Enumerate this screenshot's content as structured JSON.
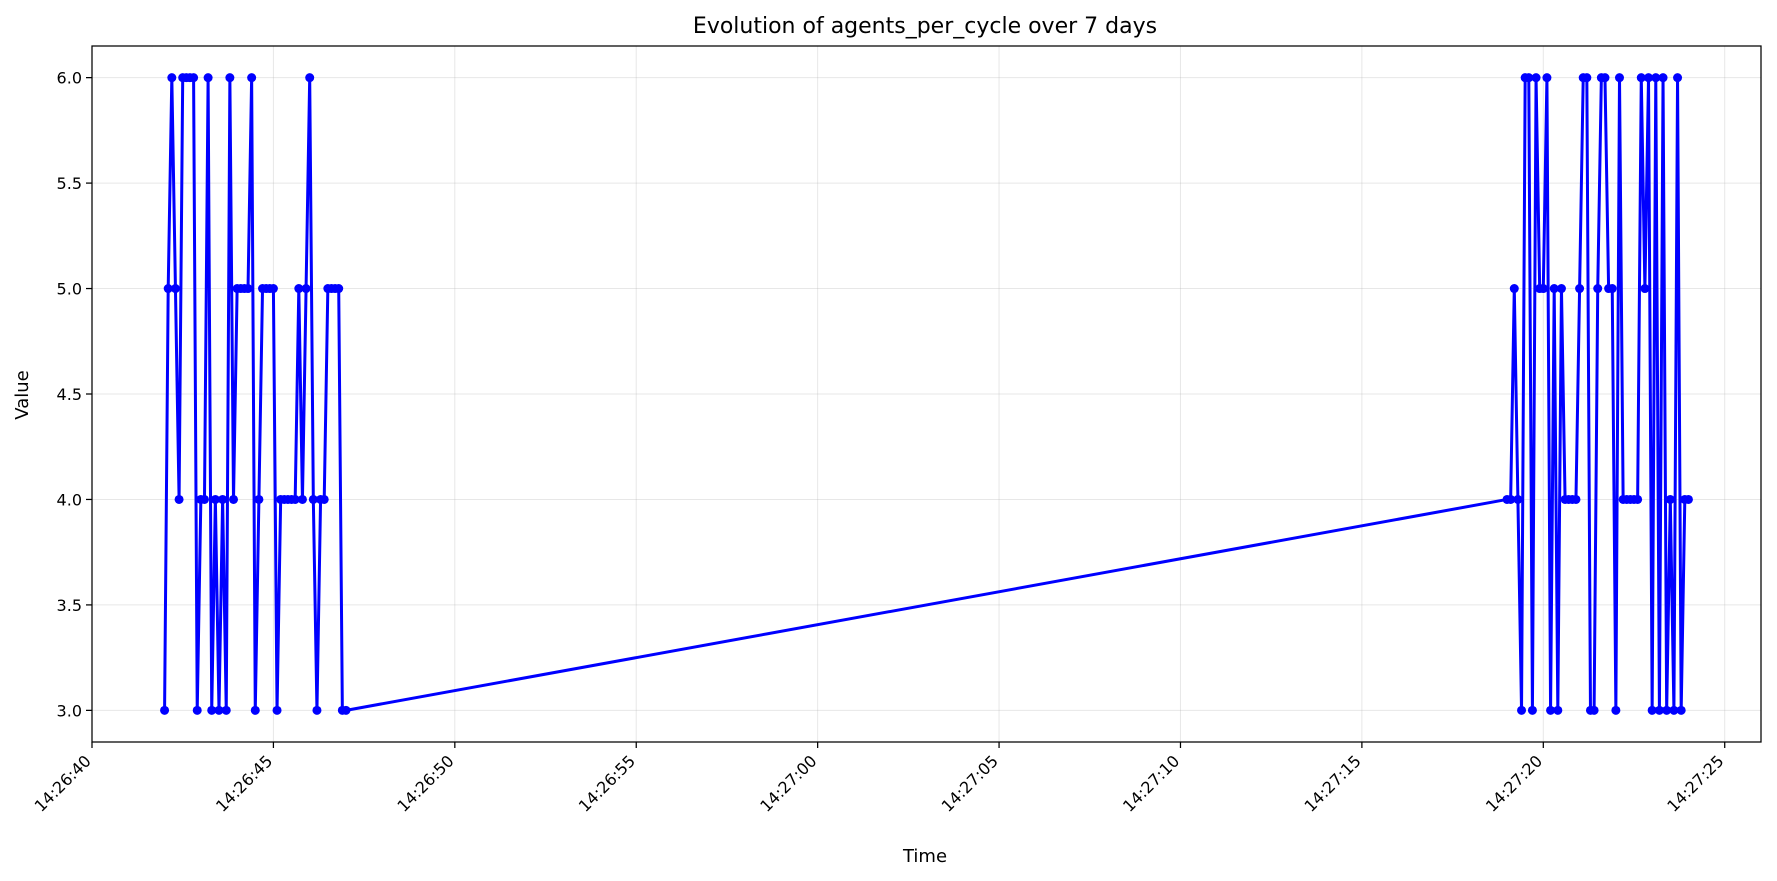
{
  "chart_data": {
    "type": "line",
    "title": "Evolution of agents_per_cycle over 7 days",
    "xlabel": "Time",
    "ylabel": "Value",
    "xlim": [
      "14:26:40",
      "14:27:26"
    ],
    "ylim": [
      2.85,
      6.15
    ],
    "x_ticks": [
      "14:26:40",
      "14:26:45",
      "14:26:50",
      "14:26:55",
      "14:27:00",
      "14:27:05",
      "14:27:10",
      "14:27:15",
      "14:27:20",
      "14:27:25"
    ],
    "y_ticks": [
      "3.0",
      "3.5",
      "4.0",
      "4.5",
      "5.0",
      "5.5",
      "6.0"
    ],
    "grid": true,
    "line_color": "#0000ff",
    "marker": "circle",
    "series": [
      {
        "x": [
          "14:26:42.0",
          "14:26:42.1",
          "14:26:42.2",
          "14:26:42.3",
          "14:26:42.4",
          "14:26:42.5",
          "14:26:42.6",
          "14:26:42.7",
          "14:26:42.8",
          "14:26:42.9",
          "14:26:43.0",
          "14:26:43.1",
          "14:26:43.2",
          "14:26:43.3",
          "14:26:43.4",
          "14:26:43.5",
          "14:26:43.6",
          "14:26:43.7",
          "14:26:43.8",
          "14:26:43.9",
          "14:26:44.0",
          "14:26:44.1",
          "14:26:44.2",
          "14:26:44.3",
          "14:26:44.4",
          "14:26:44.5",
          "14:26:44.6",
          "14:26:44.7",
          "14:26:44.8",
          "14:26:44.9",
          "14:26:45.0",
          "14:26:45.1",
          "14:26:45.2",
          "14:26:45.3",
          "14:26:45.4",
          "14:26:45.5",
          "14:26:45.6",
          "14:26:45.7",
          "14:26:45.8",
          "14:26:45.9",
          "14:26:46.0",
          "14:26:46.1",
          "14:26:46.2",
          "14:26:46.3",
          "14:26:46.4",
          "14:26:46.5",
          "14:26:46.6",
          "14:26:46.7",
          "14:26:46.8",
          "14:26:46.9",
          "14:26:47.0",
          "14:27:19.0",
          "14:27:19.1",
          "14:27:19.2",
          "14:27:19.3",
          "14:27:19.4",
          "14:27:19.5",
          "14:27:19.6",
          "14:27:19.7",
          "14:27:19.8",
          "14:27:19.9",
          "14:27:20.0",
          "14:27:20.1",
          "14:27:20.2",
          "14:27:20.3",
          "14:27:20.4",
          "14:27:20.5",
          "14:27:20.6",
          "14:27:20.7",
          "14:27:20.8",
          "14:27:20.9",
          "14:27:21.0",
          "14:27:21.1",
          "14:27:21.2",
          "14:27:21.3",
          "14:27:21.4",
          "14:27:21.5",
          "14:27:21.6",
          "14:27:21.7",
          "14:27:21.8",
          "14:27:21.9",
          "14:27:22.0",
          "14:27:22.1",
          "14:27:22.2",
          "14:27:22.3",
          "14:27:22.4",
          "14:27:22.5",
          "14:27:22.6",
          "14:27:22.7",
          "14:27:22.8",
          "14:27:22.9",
          "14:27:23.0",
          "14:27:23.1",
          "14:27:23.2",
          "14:27:23.3",
          "14:27:23.4",
          "14:27:23.5",
          "14:27:23.6",
          "14:27:23.7",
          "14:27:23.8",
          "14:27:23.9",
          "14:27:24.0"
        ],
        "y": [
          3,
          5,
          6,
          5,
          4,
          6,
          6,
          6,
          6,
          3,
          4,
          4,
          6,
          3,
          4,
          3,
          4,
          3,
          6,
          4,
          5,
          5,
          5,
          5,
          6,
          3,
          4,
          5,
          5,
          5,
          5,
          3,
          4,
          4,
          4,
          4,
          4,
          5,
          4,
          5,
          6,
          4,
          3,
          4,
          4,
          5,
          5,
          5,
          5,
          3,
          3,
          4,
          4,
          5,
          4,
          3,
          6,
          6,
          3,
          6,
          5,
          5,
          6,
          3,
          5,
          3,
          5,
          4,
          4,
          4,
          4,
          5,
          6,
          6,
          3,
          3,
          5,
          6,
          6,
          5,
          5,
          3,
          6,
          4,
          4,
          4,
          4,
          4,
          6,
          5,
          6,
          3,
          6,
          3,
          6,
          3,
          4,
          3,
          6,
          3,
          4,
          4
        ]
      }
    ]
  }
}
